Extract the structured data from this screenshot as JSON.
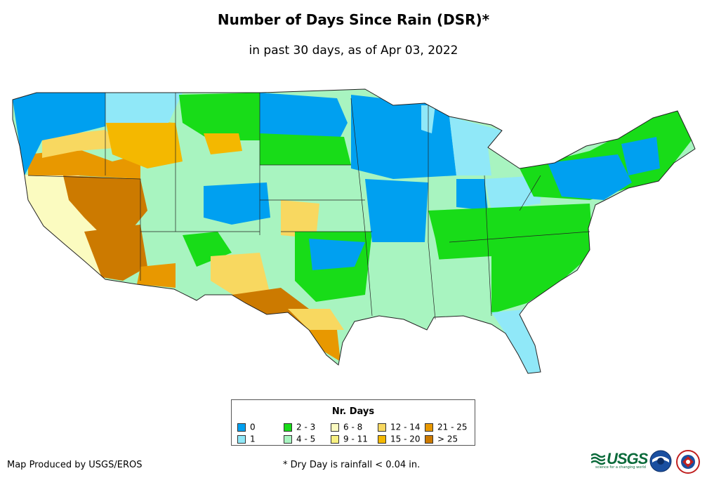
{
  "title": "Number of Days Since Rain (DSR)*",
  "subtitle": "in past 30 days, as of Apr 03, 2022",
  "legend": {
    "title": "Nr. Days",
    "items": [
      {
        "label": "0",
        "color": "#00a0f0"
      },
      {
        "label": "1",
        "color": "#90e8f8"
      },
      {
        "label": "2 - 3",
        "color": "#18dc18"
      },
      {
        "label": "4 - 5",
        "color": "#a8f4c0"
      },
      {
        "label": "6 - 8",
        "color": "#fbfbc0"
      },
      {
        "label": "9 - 11",
        "color": "#f8f080"
      },
      {
        "label": "12 - 14",
        "color": "#f8d860"
      },
      {
        "label": "15 - 20",
        "color": "#f4b800"
      },
      {
        "label": "21 - 25",
        "color": "#e89800"
      },
      {
        "label": "> 25",
        "color": "#cc7a00"
      }
    ]
  },
  "footer": {
    "credit": "Map Produced by USGS/EROS",
    "note": "* Dry Day is rainfall < 0.04 in."
  },
  "logos": {
    "usgs": "USGS",
    "usgs_tagline": "science for a changing world",
    "noaa_icon": "noaa-logo-icon",
    "nws_icon": "nws-logo-icon"
  }
}
